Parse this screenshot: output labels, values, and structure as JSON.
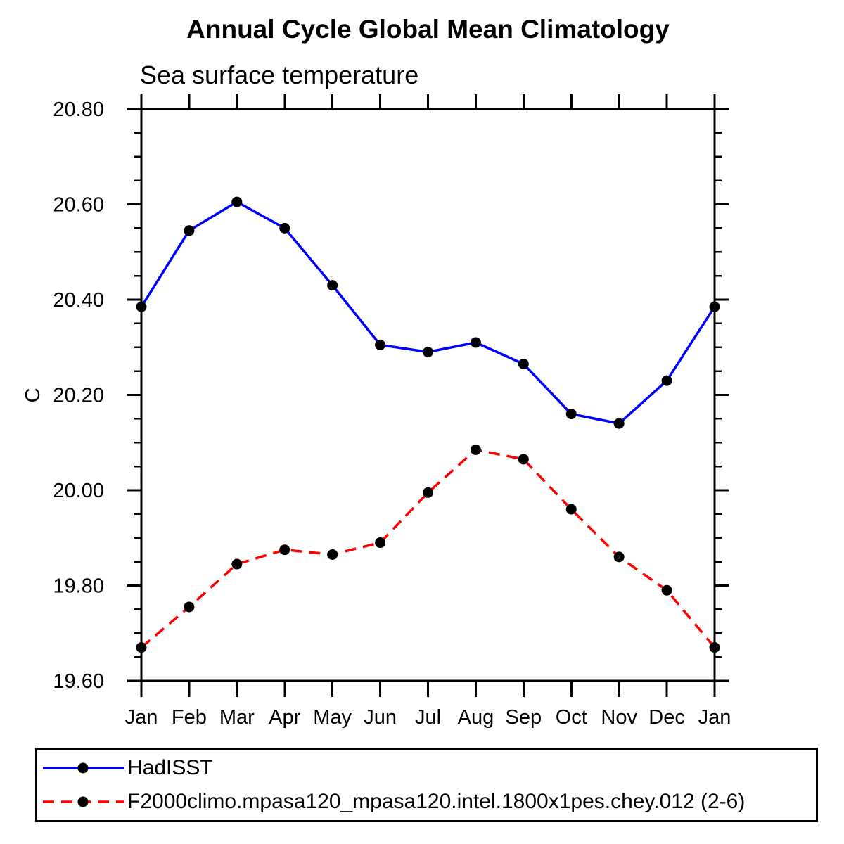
{
  "chart_data": {
    "type": "line",
    "title": "Annual Cycle Global Mean Climatology",
    "subtitle": "Sea surface temperature",
    "ylabel": "C",
    "xlabel": "",
    "categories": [
      "Jan",
      "Feb",
      "Mar",
      "Apr",
      "May",
      "Jun",
      "Jul",
      "Aug",
      "Sep",
      "Oct",
      "Nov",
      "Dec",
      "Jan"
    ],
    "ylim": [
      19.6,
      20.8
    ],
    "yticks": [
      19.6,
      19.8,
      20.0,
      20.2,
      20.4,
      20.6,
      20.8
    ],
    "ytick_labels": [
      "19.60",
      "19.80",
      "20.00",
      "20.20",
      "20.40",
      "20.60",
      "20.80"
    ],
    "ytick_minor_step": 0.05,
    "grid": false,
    "axis_color": "#000000",
    "marker": "circle",
    "marker_color": "#000000",
    "legend_position": "bottom",
    "series": [
      {
        "name": "HadISST",
        "color": "#0000ff",
        "line_style": "solid",
        "values": [
          20.385,
          20.545,
          20.605,
          20.55,
          20.43,
          20.305,
          20.29,
          20.31,
          20.265,
          20.16,
          20.14,
          20.23,
          20.385
        ]
      },
      {
        "name": "F2000climo.mpasa120_mpasa120.intel.1800x1pes.chey.012 (2-6)",
        "color": "#ff0000",
        "line_style": "dashed",
        "values": [
          19.67,
          19.755,
          19.845,
          19.875,
          19.865,
          19.89,
          19.995,
          20.085,
          20.065,
          19.96,
          19.86,
          19.79,
          19.67
        ]
      }
    ]
  }
}
